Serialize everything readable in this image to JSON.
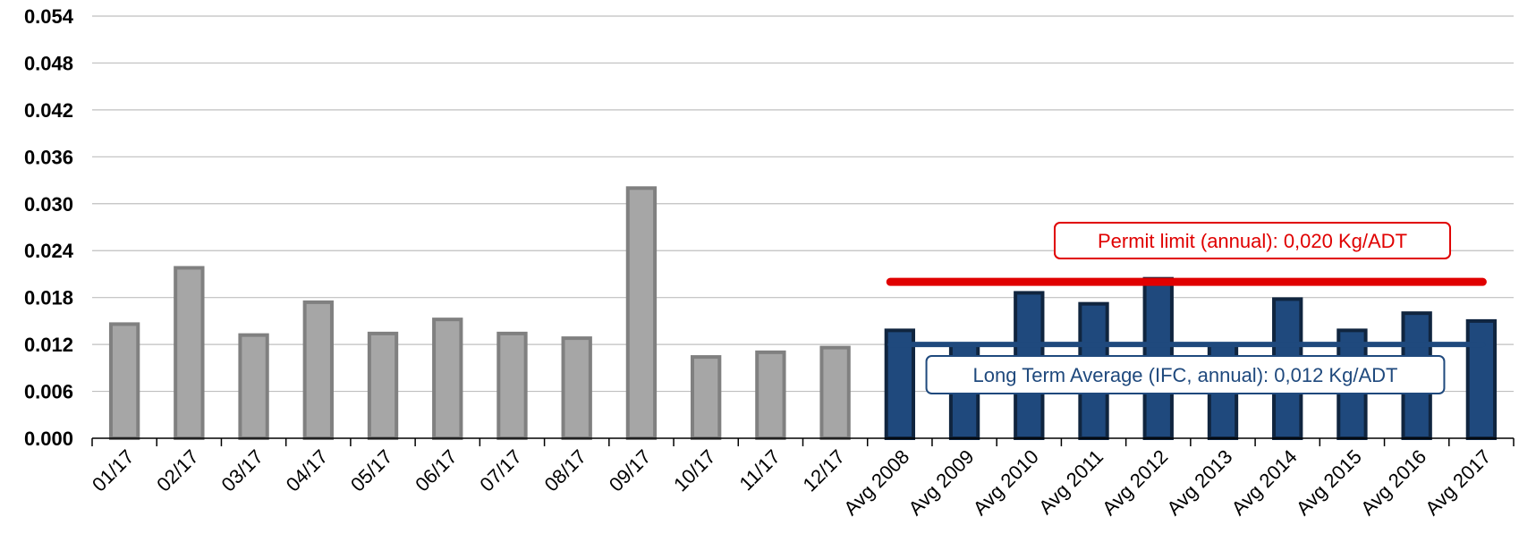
{
  "chart_data": {
    "type": "bar",
    "title": "",
    "xlabel": "",
    "ylabel": "",
    "ylim": [
      0,
      0.054
    ],
    "yticks": [
      "0.000",
      "0.006",
      "0.012",
      "0.018",
      "0.024",
      "0.030",
      "0.036",
      "0.042",
      "0.048",
      "0.054"
    ],
    "grid": true,
    "categories": [
      "01/17",
      "02/17",
      "03/17",
      "04/17",
      "05/17",
      "06/17",
      "07/17",
      "08/17",
      "09/17",
      "10/17",
      "11/17",
      "12/17",
      "Avg 2008",
      "Avg 2009",
      "Avg 2010",
      "Avg 2011",
      "Avg 2012",
      "Avg 2013",
      "Avg 2014",
      "Avg 2015",
      "Avg 2016",
      "Avg 2017"
    ],
    "values": [
      0.0146,
      0.0218,
      0.0132,
      0.0174,
      0.0134,
      0.0152,
      0.0134,
      0.0128,
      0.032,
      0.0104,
      0.011,
      0.0116,
      0.0138,
      0.012,
      0.0186,
      0.0172,
      0.0204,
      0.012,
      0.0178,
      0.0138,
      0.016,
      0.015
    ],
    "colors": {
      "monthly_fill": "#a6a6a6",
      "monthly_stroke": "#808080",
      "annual_fill": "#1f497d",
      "annual_stroke": "#10253f",
      "permit_line": "#e00000",
      "lta_line": "#1f497d",
      "grid": "#bfbfbf"
    },
    "reference_lines": [
      {
        "label": "Permit limit (annual): 0,020 Kg/ADT",
        "value": 0.02,
        "from_category": "Avg 2008",
        "to_category": "Avg 2017",
        "color": "#e00000"
      },
      {
        "label": "Long Term Average (IFC, annual): 0,012 Kg/ADT",
        "value": 0.012,
        "from_category": "Avg 2008",
        "to_category": "Avg 2017",
        "color": "#1f497d"
      }
    ]
  }
}
